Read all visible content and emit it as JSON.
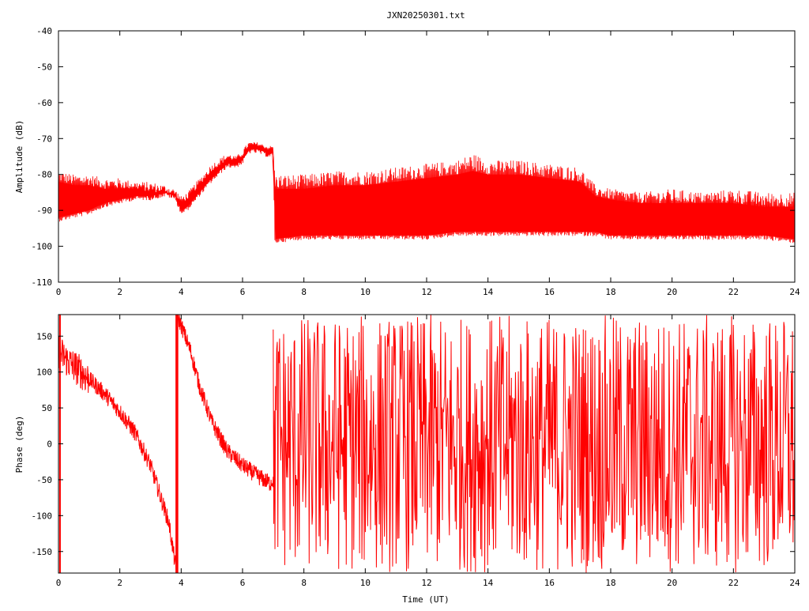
{
  "title": "JXN20250301.txt",
  "series_color": "#ff0000",
  "chart_data": [
    {
      "type": "line",
      "title": "JXN20250301.txt",
      "xlabel": "",
      "ylabel": "Amplitude (dB)",
      "xlim": [
        0,
        24
      ],
      "ylim": [
        -110,
        -40
      ],
      "xticks": [
        "0",
        "2",
        "4",
        "6",
        "8",
        "10",
        "12",
        "14",
        "16",
        "18",
        "20",
        "22",
        "24"
      ],
      "yticks": [
        "-40",
        "-50",
        "-60",
        "-70",
        "-80",
        "-90",
        "-100",
        "-110"
      ],
      "grid": false,
      "series": [
        {
          "color": "#ff0000",
          "x": [
            0,
            0.5,
            1,
            1.5,
            2,
            2.5,
            3,
            3.5,
            3.8,
            4.0,
            4.2,
            4.5,
            5.0,
            5.5,
            5.8,
            6.0,
            6.2,
            6.5,
            6.8,
            7.0,
            7.05,
            8,
            9,
            10,
            11,
            12,
            13,
            13.5,
            14,
            15,
            16,
            17,
            17.5,
            18,
            19,
            20,
            21,
            22,
            23,
            24
          ],
          "upper": [
            -82,
            -83,
            -83,
            -84,
            -84,
            -84,
            -85,
            -85,
            -86,
            -88,
            -87,
            -84,
            -79,
            -76,
            -76,
            -75,
            -72,
            -72,
            -73,
            -73,
            -84,
            -84,
            -83,
            -83,
            -82,
            -81,
            -80,
            -79,
            -80,
            -80,
            -81,
            -82,
            -86,
            -87,
            -88,
            -88,
            -88,
            -88,
            -89,
            -89
          ],
          "lower": [
            -92,
            -91,
            -90,
            -88,
            -87,
            -86,
            -86,
            -85,
            -86,
            -90,
            -89,
            -86,
            -81,
            -77,
            -77,
            -76,
            -73,
            -73,
            -74,
            -74,
            -98,
            -97,
            -97,
            -97,
            -97,
            -97,
            -96,
            -96,
            -96,
            -96,
            -96,
            -96,
            -96,
            -97,
            -97,
            -97,
            -97,
            -97,
            -97,
            -98
          ],
          "spike_max": [
            -79,
            -80,
            -80,
            -81,
            -81,
            -82,
            -82,
            -83,
            -84,
            -86,
            -85,
            -82,
            -77,
            -74,
            -75,
            -73,
            -71,
            -71,
            -72,
            -72,
            -80,
            -80,
            -79,
            -79,
            -78,
            -77,
            -76,
            -74,
            -76,
            -76,
            -77,
            -78,
            -83,
            -84,
            -85,
            -84,
            -85,
            -84,
            -85,
            -85
          ]
        }
      ]
    },
    {
      "type": "line",
      "title": "",
      "xlabel": "Time (UT)",
      "ylabel": "Phase (deg)",
      "xlim": [
        0,
        24
      ],
      "ylim": [
        -180,
        180
      ],
      "xticks": [
        "0",
        "2",
        "4",
        "6",
        "8",
        "10",
        "12",
        "14",
        "16",
        "18",
        "20",
        "22",
        "24"
      ],
      "yticks": [
        "150",
        "100",
        "50",
        "0",
        "-50",
        "-100",
        "-150"
      ],
      "grid": false,
      "series": [
        {
          "color": "#ff0000",
          "x": [
            0,
            0.3,
            0.6,
            1.0,
            1.5,
            2.0,
            2.5,
            3.0,
            3.3,
            3.6,
            3.85,
            3.86,
            4.0,
            4.3,
            4.6,
            5.0,
            5.5,
            6.0,
            6.5,
            6.9,
            7.0
          ],
          "y": [
            130,
            115,
            105,
            90,
            70,
            45,
            15,
            -30,
            -70,
            -110,
            -180,
            180,
            165,
            130,
            80,
            30,
            -10,
            -30,
            -45,
            -55,
            -50
          ],
          "noise_band": 12,
          "wrapped_region": [
            7.0,
            24
          ]
        }
      ]
    }
  ]
}
